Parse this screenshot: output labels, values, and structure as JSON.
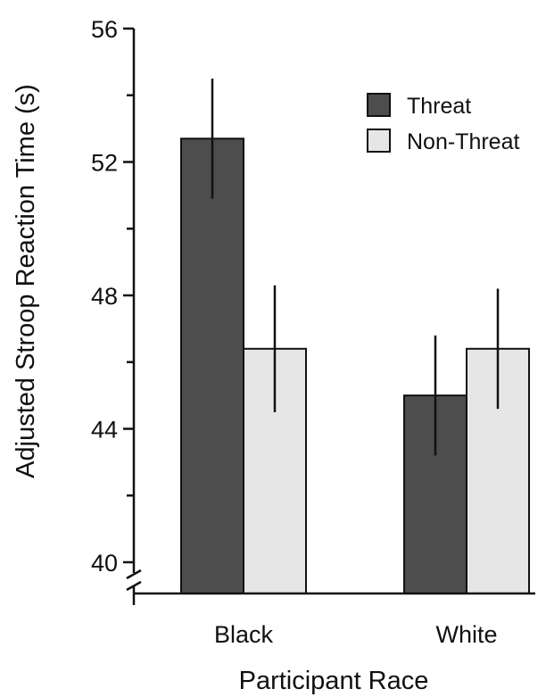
{
  "chart_data": {
    "type": "bar",
    "title": "",
    "xlabel": "Participant Race",
    "ylabel": "Adjusted Stroop Reaction Time (s)",
    "categories": [
      "Black",
      "White"
    ],
    "ylim": [
      40,
      56
    ],
    "yticks": [
      40,
      44,
      48,
      52,
      56
    ],
    "axis_break": true,
    "grid": false,
    "legend_position": "top-right",
    "series": [
      {
        "name": "Threat",
        "color": "#4d4d4d",
        "values": [
          52.7,
          45.0
        ],
        "error": [
          1.8,
          1.8
        ]
      },
      {
        "name": "Non-Threat",
        "color": "#e6e6e6",
        "values": [
          46.4,
          46.4
        ],
        "error": [
          1.9,
          1.8
        ]
      }
    ]
  }
}
